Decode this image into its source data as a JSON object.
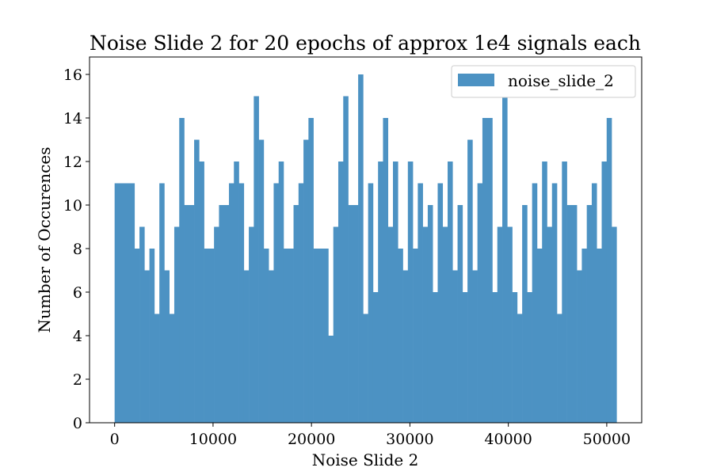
{
  "chart_data": {
    "type": "bar",
    "title": "Noise Slide 2 for 20 epochs of approx 1e4 signals each",
    "xlabel": "Noise Slide 2",
    "ylabel": "Number of Occurences",
    "xlim": [
      -2550,
      53550
    ],
    "ylim": [
      0,
      16.8
    ],
    "xticks": [
      0,
      10000,
      20000,
      30000,
      40000,
      50000
    ],
    "yticks": [
      0,
      2,
      4,
      6,
      8,
      10,
      12,
      14,
      16
    ],
    "bin_range": [
      0,
      51000
    ],
    "legend": {
      "position": "top-right",
      "entries": [
        "noise_slide_2"
      ]
    },
    "series": [
      {
        "name": "noise_slide_2",
        "color": "#4c92c3",
        "values": [
          11,
          11,
          11,
          11,
          8,
          9,
          7,
          8,
          5,
          11,
          7,
          5,
          9,
          14,
          10,
          10,
          13,
          12,
          8,
          8,
          9,
          10,
          10,
          11,
          12,
          11,
          7,
          9,
          15,
          13,
          8,
          7,
          11,
          12,
          8,
          8,
          10,
          11,
          13,
          14,
          8,
          8,
          8,
          4,
          9,
          12,
          15,
          10,
          10,
          16,
          5,
          11,
          6,
          12,
          14,
          9,
          12,
          8,
          7,
          12,
          8,
          11,
          9,
          10,
          6,
          11,
          9,
          12,
          7,
          10,
          6,
          13,
          7,
          11,
          14,
          14,
          6,
          9,
          15,
          9,
          6,
          5,
          10,
          6,
          11,
          8,
          12,
          9,
          11,
          5,
          12,
          10,
          10,
          7,
          8,
          10,
          11,
          8,
          12,
          14,
          9
        ]
      }
    ]
  }
}
